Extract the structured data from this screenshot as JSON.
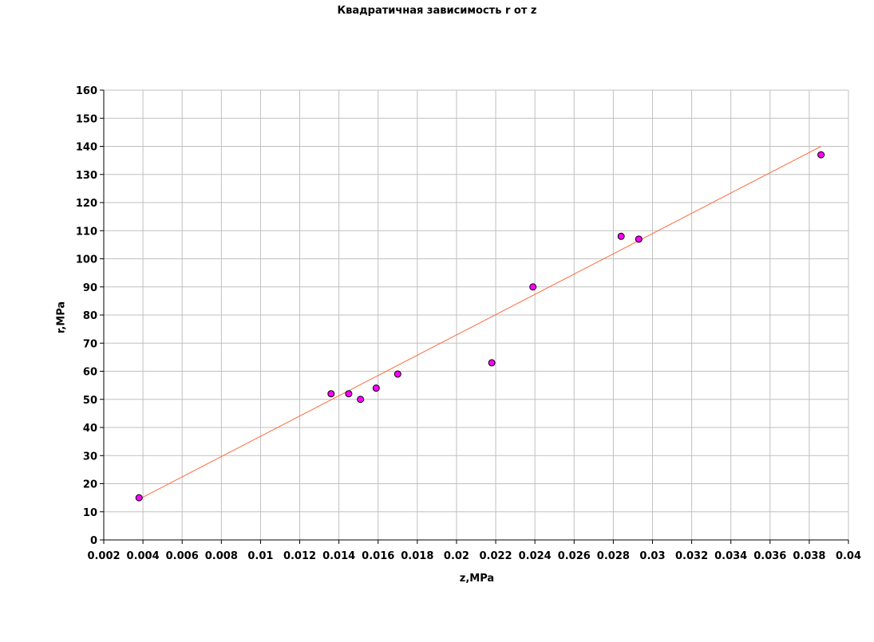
{
  "chart_data": {
    "type": "scatter",
    "title": "Квадратичная зависимость r от z",
    "xlabel": "z,MPa",
    "ylabel": "r,MPa",
    "xlim": [
      0.002,
      0.04
    ],
    "ylim": [
      0,
      160
    ],
    "x_ticks": [
      "0.002",
      "0.004",
      "0.006",
      "0.008",
      "0.01",
      "0.012",
      "0.014",
      "0.016",
      "0.018",
      "0.02",
      "0.022",
      "0.024",
      "0.026",
      "0.028",
      "0.03",
      "0.032",
      "0.034",
      "0.036",
      "0.038",
      "0.04"
    ],
    "y_ticks": [
      "0",
      "10",
      "20",
      "30",
      "40",
      "50",
      "60",
      "70",
      "80",
      "90",
      "100",
      "110",
      "120",
      "130",
      "140",
      "150",
      "160"
    ],
    "grid": true,
    "series": [
      {
        "type": "scatter",
        "color": "#ff00ff",
        "points": [
          {
            "x": 0.0038,
            "y": 15
          },
          {
            "x": 0.0136,
            "y": 52
          },
          {
            "x": 0.0145,
            "y": 52
          },
          {
            "x": 0.0151,
            "y": 50
          },
          {
            "x": 0.0159,
            "y": 54
          },
          {
            "x": 0.017,
            "y": 59
          },
          {
            "x": 0.0218,
            "y": 63
          },
          {
            "x": 0.0239,
            "y": 90
          },
          {
            "x": 0.0284,
            "y": 108
          },
          {
            "x": 0.0293,
            "y": 107
          },
          {
            "x": 0.0386,
            "y": 137
          }
        ]
      },
      {
        "type": "line",
        "color": "#ff6a3d",
        "points": [
          {
            "x": 0.0038,
            "y": 14.5
          },
          {
            "x": 0.0386,
            "y": 140
          }
        ]
      }
    ]
  }
}
